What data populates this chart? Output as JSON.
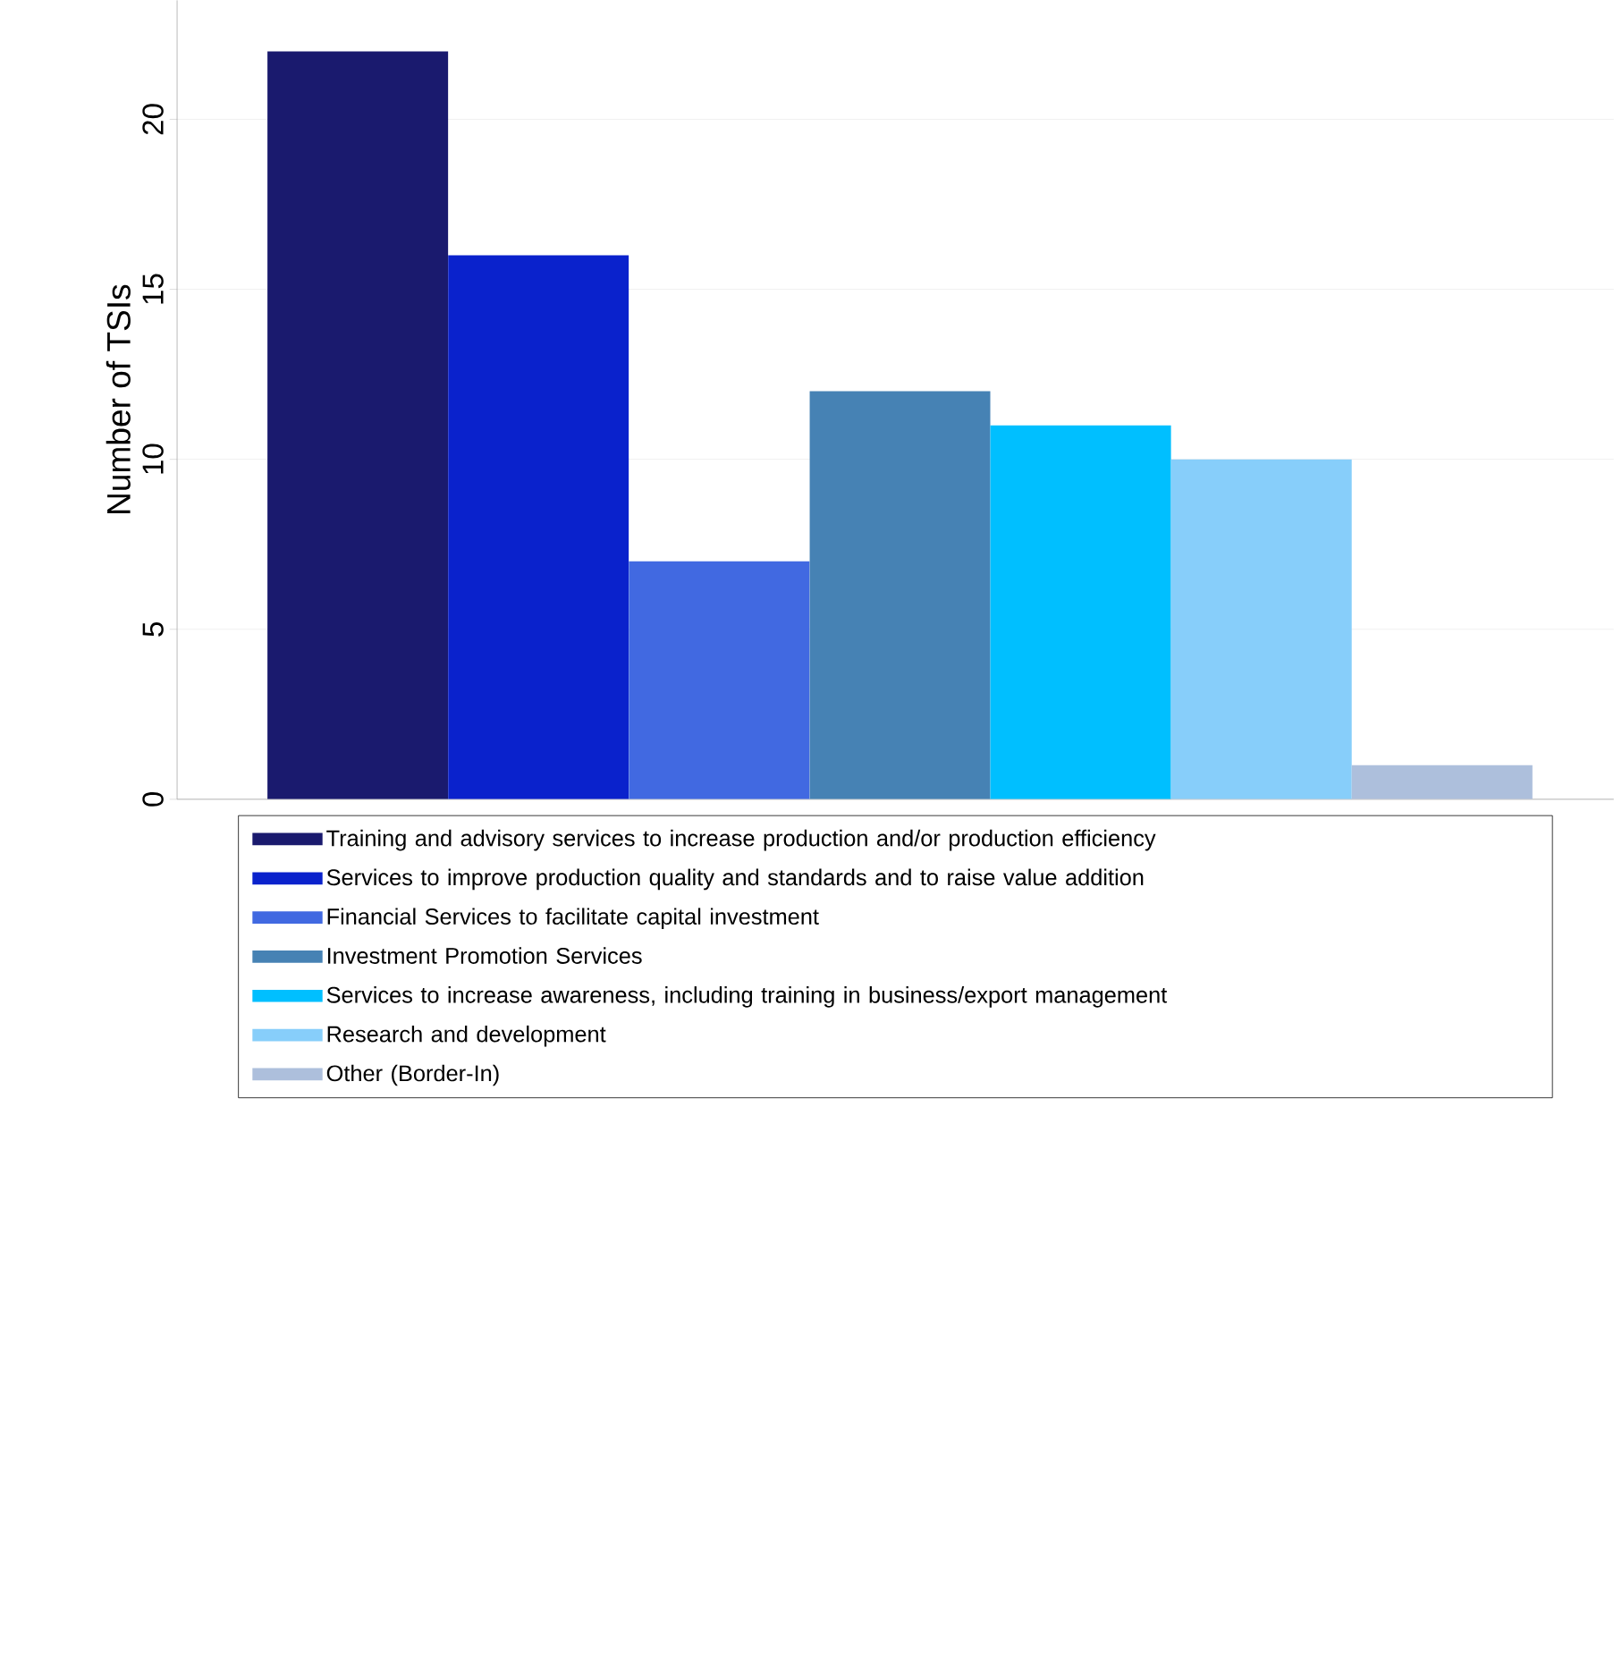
{
  "chart_data": {
    "type": "bar",
    "ylabel": "Number of TSIs",
    "categories": [
      null
    ],
    "series": [
      {
        "name": "Training and advisory services to increase production and/or production efficiency",
        "color": "#1a1a6e",
        "values": [
          22
        ]
      },
      {
        "name": "Services to improve production quality and standards and to raise value addition",
        "color": "#0a22cc",
        "values": [
          16
        ]
      },
      {
        "name": "Financial Services to facilitate capital investment",
        "color": "#4169e1",
        "values": [
          7
        ]
      },
      {
        "name": "Investment Promotion Services",
        "color": "#4682b4",
        "values": [
          12
        ]
      },
      {
        "name": "Services to increase awareness, including training in business/export management",
        "color": "#00bfff",
        "values": [
          11
        ]
      },
      {
        "name": "Research and development",
        "color": "#87cefa",
        "values": [
          10
        ]
      },
      {
        "name": "Other (Border-In)",
        "color": "#adbfdc",
        "values": [
          1
        ]
      }
    ],
    "ylim": [
      0,
      23.5
    ],
    "yticks": [
      0,
      5,
      10,
      15,
      20
    ],
    "grid": "y",
    "legend": "bottom"
  }
}
